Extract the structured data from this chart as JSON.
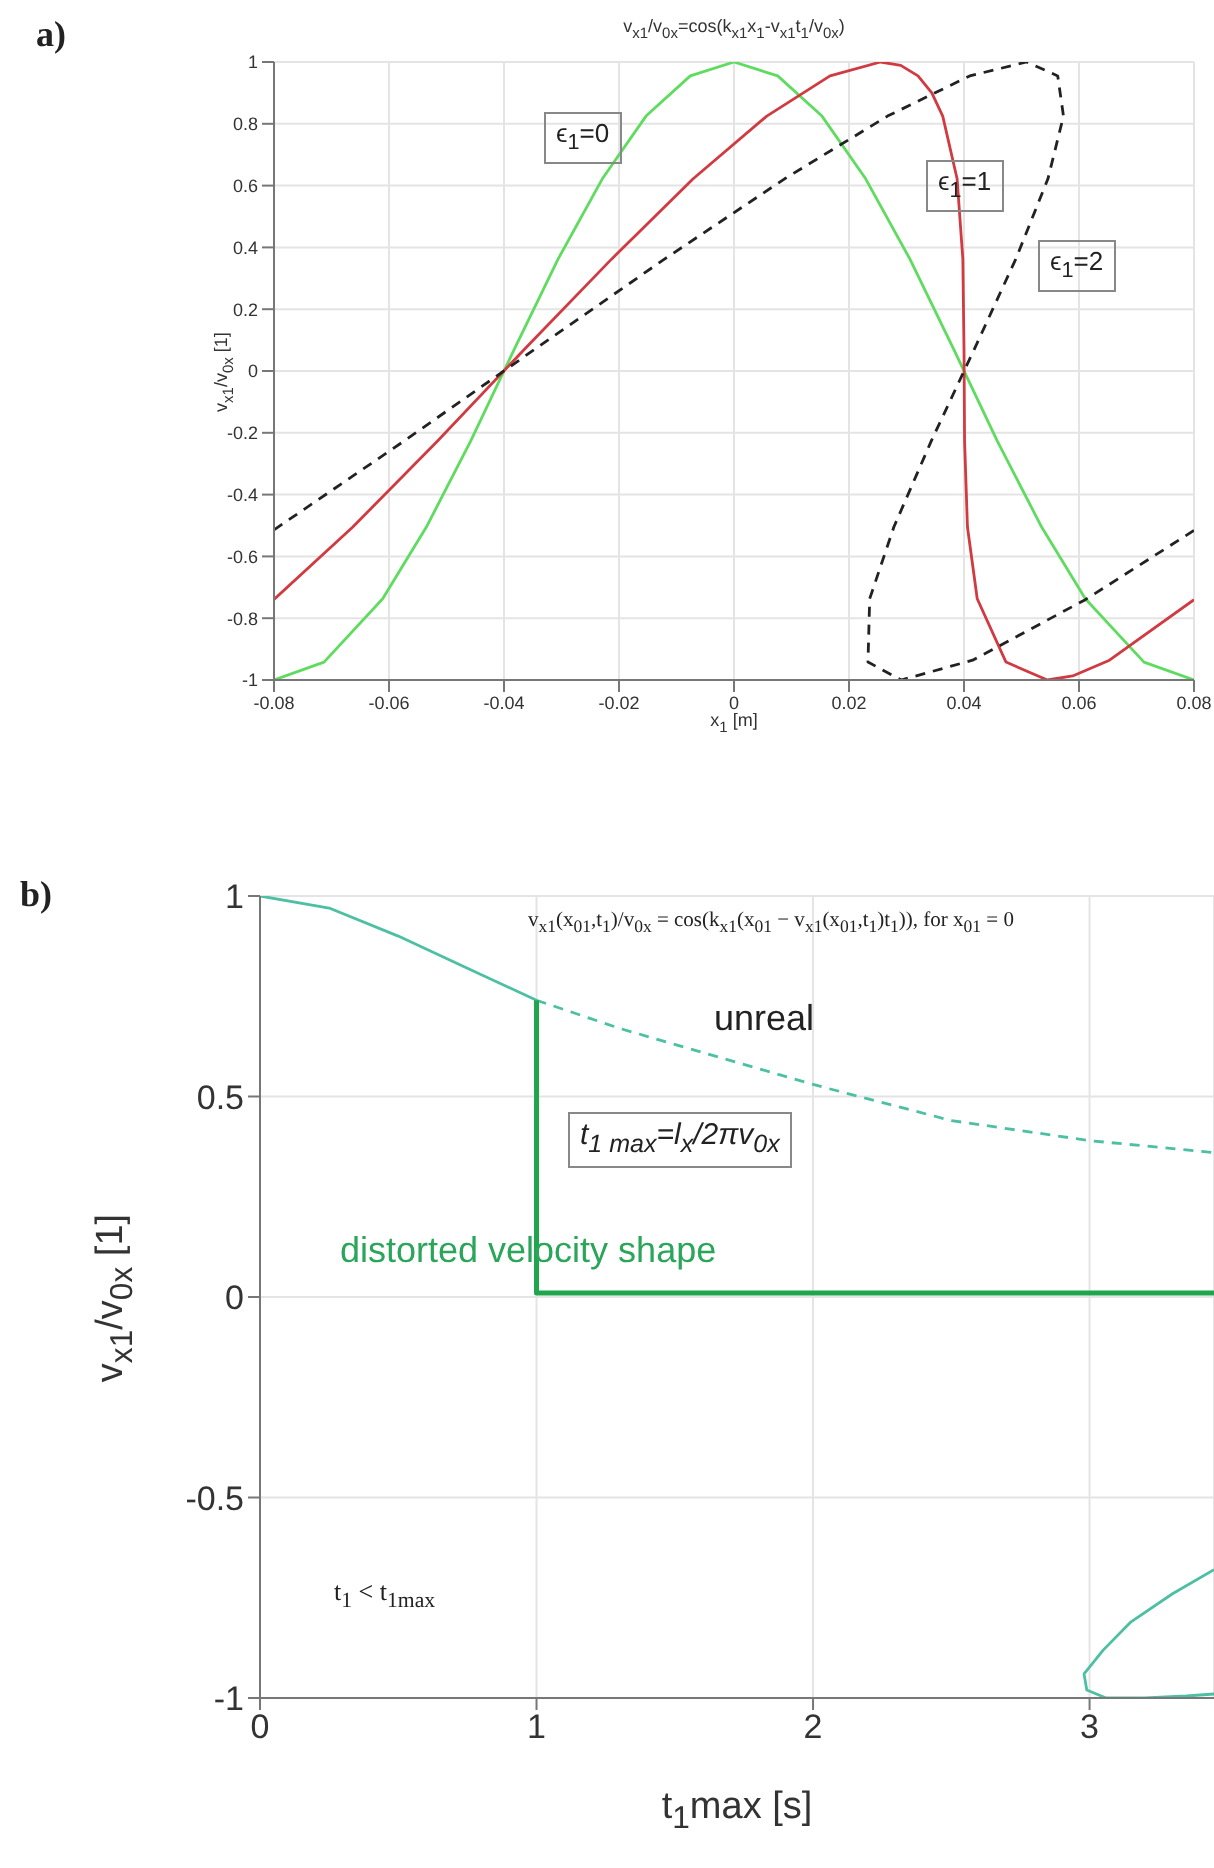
{
  "chart_data": [
    {
      "type": "line",
      "title": "v$_{x1}$/v$_{0x}$=cos(k$_{x1}$x$_{1}$-v$_{x1}$t$_{1}$/v$_{0x}$)",
      "xlabel": "x$_{1}$  [m]",
      "ylabel": "v$_{x1}$/v$_{0x}$ [1]",
      "xlim": [
        -0.08,
        0.08
      ],
      "xticks": [
        -0.08,
        -0.06,
        -0.04,
        -0.02,
        0,
        0.02,
        0.04,
        0.06,
        0.08
      ],
      "ylim": [
        -1,
        1
      ],
      "yticks": [
        -1,
        -0.8,
        -0.6,
        -0.4,
        -0.2,
        0,
        0.2,
        0.4,
        0.6,
        0.8,
        1
      ],
      "grid": true,
      "annotations": [
        "a)",
        "ϵ$_{1}$=0",
        "ϵ$_{1}$=1",
        "ϵ$_{1}$=2"
      ],
      "series": [
        {
          "color": "#5fdc5f",
          "line_style": "solid",
          "x": [
            -0.08,
            -0.0713,
            -0.0611,
            -0.0535,
            -0.0458,
            -0.0382,
            -0.0306,
            -0.0229,
            -0.0153,
            -0.0076,
            0,
            0.0076,
            0.0153,
            0.0229,
            0.0306,
            0.0382,
            0.0458,
            0.0535,
            0.0611,
            0.0713,
            0.08
          ],
          "values": [
            -1,
            -0.942,
            -0.737,
            -0.505,
            -0.227,
            0.071,
            0.362,
            0.622,
            0.825,
            0.955,
            1,
            0.955,
            0.825,
            0.622,
            0.362,
            0.071,
            -0.227,
            -0.505,
            -0.737,
            -0.942,
            -1
          ]
        },
        {
          "color": "#d03a40",
          "line_style": "solid",
          "x": [
            -0.08,
            -0.0663,
            -0.0516,
            -0.0364,
            -0.0213,
            -0.0071,
            0.0057,
            0.0167,
            0.0255,
            0.029,
            0.032,
            0.0344,
            0.0363,
            0.0388,
            0.0398,
            0.04,
            0.0401,
            0.0406,
            0.0423,
            0.0473,
            0.0545,
            0.0589,
            0.0653,
            0.08
          ],
          "values": [
            -0.739,
            -0.505,
            -0.227,
            0.071,
            0.362,
            0.622,
            0.825,
            0.955,
            1,
            0.989,
            0.955,
            0.9,
            0.825,
            0.622,
            0.362,
            0.071,
            -0.227,
            -0.505,
            -0.737,
            -0.942,
            -1,
            -0.987,
            -0.936,
            -0.74
          ]
        },
        {
          "color": "#222222",
          "line_style": "dashed",
          "x": [
            -0.08,
            -0.0574,
            -0.0346,
            -0.0121,
            0.0088,
            0.0267,
            0.041,
            0.0509,
            0.0563,
            0.0573,
            0.0546,
            0.049,
            0.0418,
            0.0343,
            0.0278,
            0.0236,
            0.0233,
            0.0291,
            0.0415,
            0.0611,
            0.08
          ],
          "values": [
            -0.514,
            -0.227,
            0.071,
            0.362,
            0.622,
            0.825,
            0.955,
            1,
            0.955,
            0.825,
            0.622,
            0.362,
            0.071,
            -0.227,
            -0.505,
            -0.737,
            -0.942,
            -1,
            -0.936,
            -0.74,
            -0.516
          ]
        }
      ]
    },
    {
      "type": "line",
      "xlabel": "t$_{1}$max   [s]",
      "ylabel": "v$_{x1}$/v$_{0x}$ [1]",
      "xlim": [
        0,
        3.45
      ],
      "xticks": [
        0,
        1,
        2,
        3
      ],
      "ylim": [
        -1,
        1
      ],
      "yticks": [
        -1,
        -0.5,
        0,
        0.5,
        1
      ],
      "grid": true,
      "annotations": [
        "b)",
        "v$_{x1}$(x$_{01}$,t$_{1}$)/v$_{0x}$ = cos(k$_{x1}$(x$_{01}$ − v$_{x1}$(x$_{01}$,t$_{1}$)t$_{1}$)), for x$_{01}$ = 0",
        "t$_{1}$ < t$_{1max}$",
        "unreal",
        "t$_{1 max}$=l$_{x}$/2πv$_{0x}$",
        "distorted velocity shape"
      ],
      "series": [
        {
          "color": "#4dbfa3",
          "line_style": "solid",
          "x": [
            0,
            0.25,
            0.5,
            0.75,
            1
          ],
          "values": [
            1,
            0.97,
            0.9,
            0.82,
            0.74
          ]
        },
        {
          "color": "#4dbfa3",
          "line_style": "dashed",
          "x": [
            1,
            1.3,
            1.6,
            2,
            2.5,
            3,
            3.45
          ],
          "values": [
            0.74,
            0.67,
            0.61,
            0.53,
            0.44,
            0.39,
            0.36
          ]
        },
        {
          "color": "#1fa64c",
          "line_style": "solid",
          "x": [
            1,
            1,
            3.45
          ],
          "values": [
            0.74,
            0.01,
            0.01
          ]
        },
        {
          "color": "#4dbfa3",
          "line_style": "solid",
          "x": [
            3.45,
            3.3,
            3.15,
            3.05,
            2.98,
            2.99,
            3.06,
            3.2,
            3.35,
            3.45
          ],
          "values": [
            -0.68,
            -0.74,
            -0.81,
            -0.88,
            -0.94,
            -0.98,
            -1,
            -1,
            -0.995,
            -0.99
          ]
        }
      ]
    }
  ]
}
